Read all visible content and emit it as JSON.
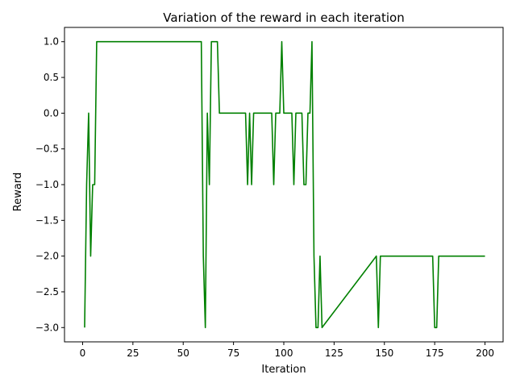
{
  "chart_data": {
    "type": "line",
    "title": "Variation of the reward in each iteration",
    "xlabel": "Iteration",
    "ylabel": "Reward",
    "xlim": [
      -9,
      209
    ],
    "ylim": [
      -3.2,
      1.2
    ],
    "xticks": [
      0,
      25,
      50,
      75,
      100,
      125,
      150,
      175,
      200
    ],
    "yticks": [
      -3.0,
      -2.5,
      -2.0,
      -1.5,
      -1.0,
      -0.5,
      0.0,
      0.5,
      1.0
    ],
    "grid": false,
    "legend": "none",
    "series": [
      {
        "color": "#008000",
        "x": [
          1,
          2,
          3,
          4,
          5,
          6,
          7,
          58,
          59,
          60,
          61,
          62,
          63,
          64,
          65,
          66,
          67,
          68,
          69,
          80,
          81,
          82,
          83,
          84,
          85,
          94,
          95,
          96,
          97,
          98,
          99,
          100,
          101,
          104,
          105,
          106,
          109,
          110,
          111,
          112,
          113,
          114,
          115,
          116,
          117,
          118,
          119,
          146,
          147,
          148,
          174,
          175,
          176,
          177,
          200
        ],
        "y": [
          -3,
          -1,
          0,
          -2,
          -1,
          -1,
          1,
          1,
          1,
          -2,
          -3,
          0,
          -1,
          1,
          1,
          1,
          1,
          0,
          0,
          0,
          0,
          -1,
          0,
          -1,
          0,
          0,
          -1,
          0,
          0,
          0,
          1,
          0,
          0,
          0,
          -1,
          0,
          0,
          -1,
          -1,
          0,
          0,
          1,
          -2,
          -3,
          -3,
          -2,
          -3,
          -2,
          -3,
          -2,
          -2,
          -3,
          -3,
          -2,
          -2
        ]
      }
    ]
  }
}
